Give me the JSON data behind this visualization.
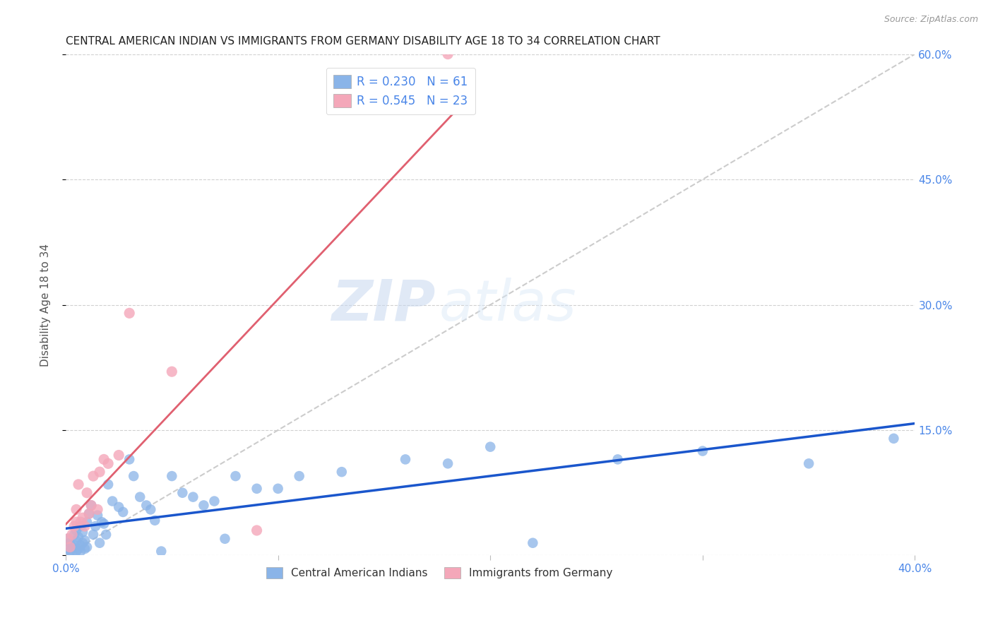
{
  "title": "CENTRAL AMERICAN INDIAN VS IMMIGRANTS FROM GERMANY DISABILITY AGE 18 TO 34 CORRELATION CHART",
  "source": "Source: ZipAtlas.com",
  "ylabel_label": "Disability Age 18 to 34",
  "x_min": 0.0,
  "x_max": 0.4,
  "y_min": 0.0,
  "y_max": 0.6,
  "x_ticks": [
    0.0,
    0.1,
    0.2,
    0.3,
    0.4
  ],
  "y_ticks": [
    0.0,
    0.15,
    0.3,
    0.45,
    0.6
  ],
  "y_tick_labels": [
    "",
    "15.0%",
    "30.0%",
    "45.0%",
    "60.0%"
  ],
  "blue_color": "#8ab4e8",
  "pink_color": "#f4a7b9",
  "blue_line_color": "#1a56cc",
  "pink_line_color": "#e06070",
  "diagonal_color": "#cccccc",
  "R_blue": 0.23,
  "N_blue": 61,
  "R_pink": 0.545,
  "N_pink": 23,
  "legend_label_blue": "Central American Indians",
  "legend_label_pink": "Immigrants from Germany",
  "watermark_zip": "ZIP",
  "watermark_atlas": "atlas",
  "blue_x": [
    0.001,
    0.001,
    0.002,
    0.002,
    0.003,
    0.003,
    0.004,
    0.004,
    0.005,
    0.005,
    0.005,
    0.006,
    0.006,
    0.007,
    0.007,
    0.007,
    0.008,
    0.008,
    0.009,
    0.009,
    0.01,
    0.01,
    0.011,
    0.012,
    0.013,
    0.014,
    0.015,
    0.016,
    0.017,
    0.018,
    0.019,
    0.02,
    0.022,
    0.025,
    0.027,
    0.03,
    0.032,
    0.035,
    0.038,
    0.04,
    0.042,
    0.045,
    0.05,
    0.055,
    0.06,
    0.065,
    0.07,
    0.075,
    0.08,
    0.09,
    0.1,
    0.11,
    0.13,
    0.16,
    0.18,
    0.2,
    0.22,
    0.26,
    0.3,
    0.35,
    0.39
  ],
  "blue_y": [
    0.02,
    0.008,
    0.015,
    0.005,
    0.01,
    0.003,
    0.012,
    0.025,
    0.018,
    0.03,
    0.005,
    0.008,
    0.022,
    0.035,
    0.012,
    0.005,
    0.015,
    0.028,
    0.008,
    0.018,
    0.04,
    0.01,
    0.05,
    0.06,
    0.025,
    0.035,
    0.048,
    0.015,
    0.04,
    0.038,
    0.025,
    0.085,
    0.065,
    0.058,
    0.052,
    0.115,
    0.095,
    0.07,
    0.06,
    0.055,
    0.042,
    0.005,
    0.095,
    0.075,
    0.07,
    0.06,
    0.065,
    0.02,
    0.095,
    0.08,
    0.08,
    0.095,
    0.1,
    0.115,
    0.11,
    0.13,
    0.015,
    0.115,
    0.125,
    0.11,
    0.14
  ],
  "pink_x": [
    0.001,
    0.002,
    0.003,
    0.004,
    0.005,
    0.005,
    0.006,
    0.007,
    0.008,
    0.009,
    0.01,
    0.011,
    0.012,
    0.013,
    0.015,
    0.016,
    0.018,
    0.02,
    0.025,
    0.03,
    0.05,
    0.09,
    0.18
  ],
  "pink_y": [
    0.02,
    0.01,
    0.025,
    0.035,
    0.04,
    0.055,
    0.085,
    0.04,
    0.045,
    0.035,
    0.075,
    0.05,
    0.06,
    0.095,
    0.055,
    0.1,
    0.115,
    0.11,
    0.12,
    0.29,
    0.22,
    0.03,
    0.6
  ]
}
